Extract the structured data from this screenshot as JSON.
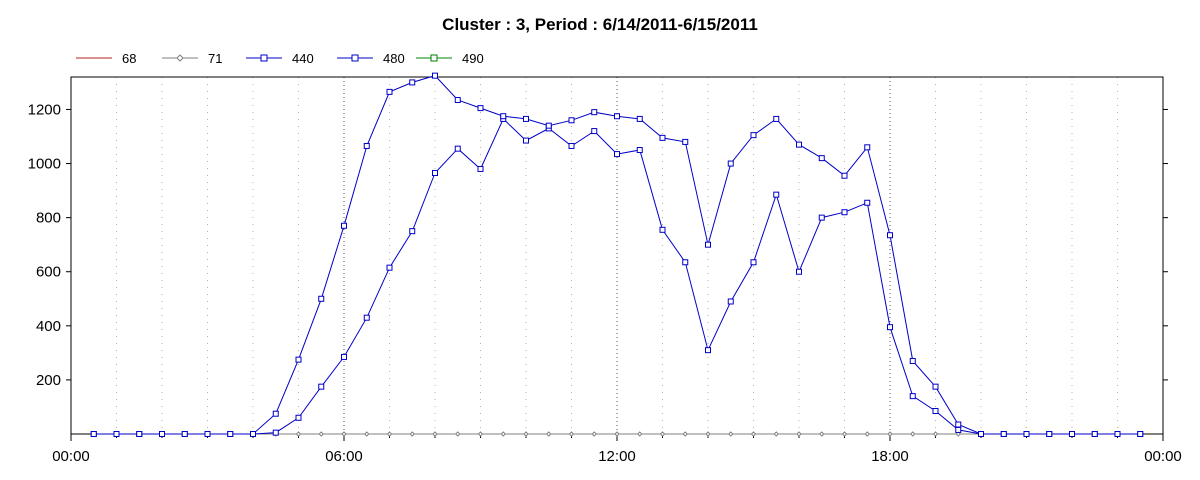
{
  "chart_data": {
    "type": "line",
    "title": "Cluster : 3, Period : 6/14/2011-6/15/2011",
    "xlabel": "",
    "ylabel": "",
    "x_ticks": [
      "00:00",
      "06:00",
      "12:00",
      "18:00",
      "00:00"
    ],
    "x_range_hours": [
      0,
      24
    ],
    "y_ticks": [
      200,
      400,
      600,
      800,
      1000,
      1200
    ],
    "ylim": [
      0,
      1320
    ],
    "grid": "vertical dotted",
    "legend_position": "top-left",
    "series": [
      {
        "name": "68",
        "color": "#b22222",
        "marker": "none",
        "x": [
          0.5,
          1,
          1.5,
          2,
          2.5,
          3,
          3.5,
          4,
          4.5,
          5,
          5.5,
          6,
          6.5,
          7,
          7.5,
          8,
          8.5,
          9,
          9.5,
          10,
          10.5,
          11,
          11.5,
          12,
          12.5,
          13,
          13.5,
          14,
          14.5,
          15,
          15.5,
          16,
          16.5,
          17,
          17.5,
          18,
          18.5,
          19,
          19.5,
          20,
          20.5,
          21,
          21.5,
          22,
          22.5,
          23,
          23.5
        ],
        "values": [
          0,
          0,
          0,
          0,
          0,
          0,
          0,
          0,
          0,
          0,
          0,
          0,
          0,
          0,
          0,
          0,
          0,
          0,
          0,
          0,
          0,
          0,
          0,
          0,
          0,
          0,
          0,
          0,
          0,
          0,
          0,
          0,
          0,
          0,
          0,
          0,
          0,
          0,
          0,
          0,
          0,
          0,
          0,
          0,
          0,
          0,
          0
        ]
      },
      {
        "name": "71",
        "color": "#808080",
        "marker": "diamond",
        "x": [
          0.5,
          1,
          1.5,
          2,
          2.5,
          3,
          3.5,
          4,
          4.5,
          5,
          5.5,
          6,
          6.5,
          7,
          7.5,
          8,
          8.5,
          9,
          9.5,
          10,
          10.5,
          11,
          11.5,
          12,
          12.5,
          13,
          13.5,
          14,
          14.5,
          15,
          15.5,
          16,
          16.5,
          17,
          17.5,
          18,
          18.5,
          19,
          19.5,
          20,
          20.5,
          21,
          21.5,
          22,
          22.5,
          23,
          23.5
        ],
        "values": [
          0,
          0,
          0,
          0,
          0,
          0,
          0,
          0,
          0,
          0,
          0,
          0,
          0,
          0,
          0,
          0,
          0,
          0,
          0,
          0,
          0,
          0,
          0,
          0,
          0,
          0,
          0,
          0,
          0,
          0,
          0,
          0,
          0,
          0,
          0,
          0,
          0,
          0,
          0,
          0,
          0,
          0,
          0,
          0,
          0,
          0,
          0
        ]
      },
      {
        "name": "440",
        "color": "#0000c8",
        "marker": "square",
        "x": [
          0.5,
          1,
          1.5,
          2,
          2.5,
          3,
          3.5,
          4,
          4.5,
          5,
          5.5,
          6,
          6.5,
          7,
          7.5,
          8,
          8.5,
          9,
          9.5,
          10,
          10.5,
          11,
          11.5,
          12,
          12.5,
          13,
          13.5,
          14,
          14.5,
          15,
          15.5,
          16,
          16.5,
          17,
          17.5,
          18,
          18.5,
          19,
          19.5,
          20,
          20.5,
          21,
          21.5,
          22,
          22.5,
          23,
          23.5
        ],
        "values": [
          0,
          0,
          0,
          0,
          0,
          0,
          0,
          0,
          75,
          275,
          500,
          770,
          1065,
          1265,
          1300,
          1325,
          1235,
          1205,
          1175,
          1165,
          1140,
          1160,
          1190,
          1175,
          1165,
          1095,
          1080,
          700,
          1000,
          1105,
          1165,
          1070,
          1020,
          955,
          1060,
          735,
          270,
          175,
          35,
          0,
          0,
          0,
          0,
          0,
          0,
          0,
          0
        ]
      },
      {
        "name": "480",
        "color": "#0000c8",
        "marker": "square",
        "x": [
          0.5,
          1,
          1.5,
          2,
          2.5,
          3,
          3.5,
          4,
          4.5,
          5,
          5.5,
          6,
          6.5,
          7,
          7.5,
          8,
          8.5,
          9,
          9.5,
          10,
          10.5,
          11,
          11.5,
          12,
          12.5,
          13,
          13.5,
          14,
          14.5,
          15,
          15.5,
          16,
          16.5,
          17,
          17.5,
          18,
          18.5,
          19,
          19.5,
          20,
          20.5,
          21,
          21.5,
          22,
          22.5,
          23,
          23.5
        ],
        "values": [
          0,
          0,
          0,
          0,
          0,
          0,
          0,
          0,
          5,
          60,
          175,
          285,
          430,
          615,
          750,
          965,
          1055,
          980,
          1165,
          1085,
          1130,
          1065,
          1120,
          1035,
          1050,
          755,
          635,
          310,
          490,
          635,
          885,
          600,
          800,
          820,
          855,
          395,
          140,
          85,
          15,
          0,
          0,
          0,
          0,
          0,
          0,
          0,
          0
        ]
      },
      {
        "name": "490",
        "color": "#008000",
        "marker": "square",
        "x": [],
        "values": []
      }
    ]
  }
}
